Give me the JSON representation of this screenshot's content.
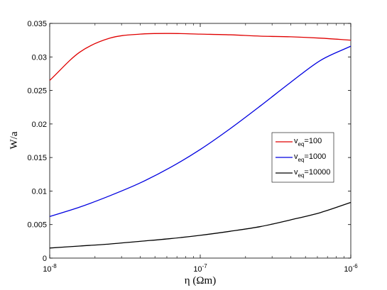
{
  "chart_data": {
    "type": "line",
    "xlabel": "η (Ωm)",
    "ylabel": "W/a",
    "xscale": "log",
    "xlim": [
      1e-08,
      1e-06
    ],
    "ylim": [
      0,
      0.035
    ],
    "grid": false,
    "legend_position": "center-right",
    "x_ticks": [
      {
        "value": 1e-08,
        "base": "10",
        "exp": "-8"
      },
      {
        "value": 1e-07,
        "base": "10",
        "exp": "-7"
      },
      {
        "value": 1e-06,
        "base": "10",
        "exp": "-6"
      }
    ],
    "y_ticks": [
      {
        "value": 0,
        "label": "0"
      },
      {
        "value": 0.005,
        "label": "0.005"
      },
      {
        "value": 0.01,
        "label": "0.01"
      },
      {
        "value": 0.015,
        "label": "0.015"
      },
      {
        "value": 0.02,
        "label": "0.02"
      },
      {
        "value": 0.025,
        "label": "0.025"
      },
      {
        "value": 0.03,
        "label": "0.03"
      },
      {
        "value": 0.035,
        "label": "0.035"
      }
    ],
    "x": [
      1e-08,
      1.58e-08,
      2.51e-08,
      3.98e-08,
      6.31e-08,
      1e-07,
      1.58e-07,
      2.51e-07,
      3.98e-07,
      6.31e-07,
      1e-06
    ],
    "series": [
      {
        "label_base": "v",
        "label_sub": "eq",
        "label_value": "=100",
        "color": "#e00000",
        "values": [
          0.0265,
          0.0307,
          0.0328,
          0.0334,
          0.0335,
          0.0334,
          0.0333,
          0.0331,
          0.033,
          0.0328,
          0.0325
        ]
      },
      {
        "label_base": "v",
        "label_sub": "eq",
        "label_value": "=1000",
        "color": "#0000e0",
        "values": [
          0.0062,
          0.0076,
          0.0093,
          0.0112,
          0.0135,
          0.0162,
          0.0193,
          0.0227,
          0.0262,
          0.0295,
          0.0316
        ]
      },
      {
        "label_base": "v",
        "label_sub": "eq",
        "label_value": "=10000",
        "color": "#000000",
        "values": [
          0.0015,
          0.0018,
          0.0021,
          0.0025,
          0.0029,
          0.0034,
          0.004,
          0.0047,
          0.0057,
          0.0068,
          0.0083
        ]
      }
    ]
  }
}
